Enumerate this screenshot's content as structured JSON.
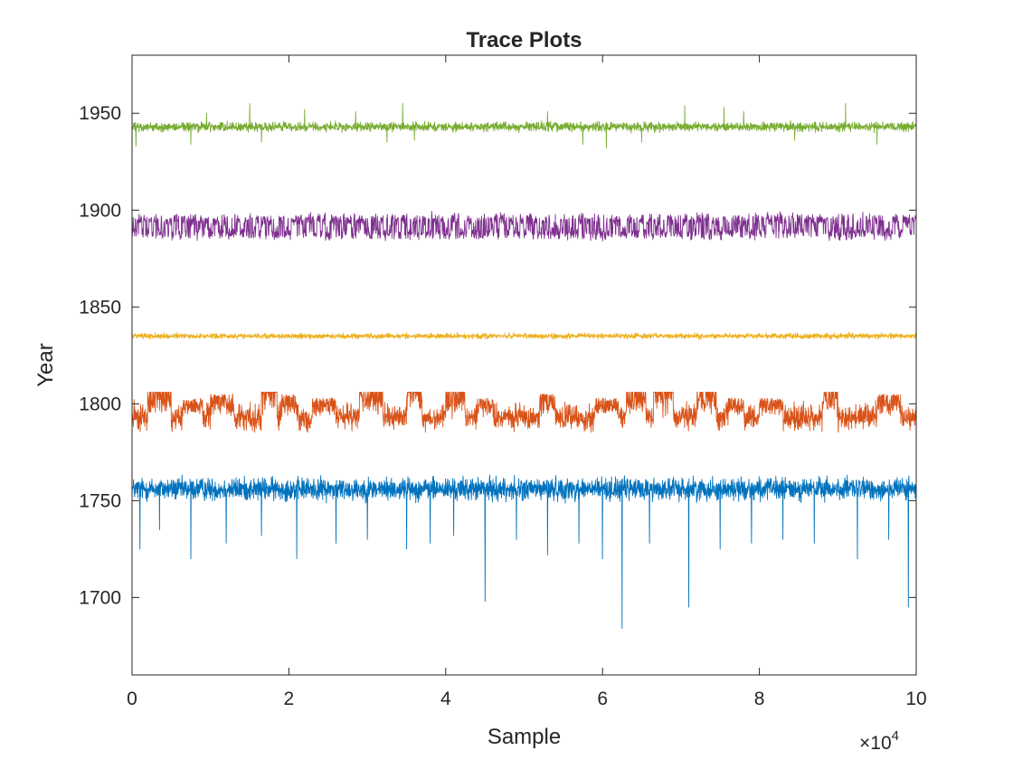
{
  "chart_data": {
    "type": "line",
    "title": "Trace Plots",
    "xlabel": "Sample",
    "ylabel": "Year",
    "xlim": [
      0,
      100000
    ],
    "ylim": [
      1660,
      1980
    ],
    "x_ticks": [
      0,
      20000,
      40000,
      60000,
      80000,
      100000
    ],
    "x_tick_labels": [
      "0",
      "2",
      "4",
      "6",
      "8",
      "10"
    ],
    "x_multiplier": {
      "base": "×10",
      "exponent": "4"
    },
    "y_ticks": [
      1700,
      1750,
      1800,
      1850,
      1900,
      1950
    ],
    "y_tick_labels": [
      "1700",
      "1750",
      "1800",
      "1850",
      "1900",
      "1950"
    ],
    "grid": false,
    "legend": "none",
    "n_samples": 100000,
    "series": [
      {
        "color": "#0072BD",
        "center": 1756,
        "band": [
          1747,
          1764
        ],
        "spikes_down": [
          [
            1000,
            1725
          ],
          [
            3500,
            1735
          ],
          [
            7500,
            1720
          ],
          [
            12000,
            1728
          ],
          [
            16500,
            1732
          ],
          [
            21000,
            1720
          ],
          [
            26000,
            1728
          ],
          [
            30000,
            1730
          ],
          [
            35000,
            1725
          ],
          [
            38000,
            1728
          ],
          [
            41000,
            1732
          ],
          [
            45000,
            1698
          ],
          [
            49000,
            1730
          ],
          [
            53000,
            1722
          ],
          [
            57000,
            1728
          ],
          [
            60000,
            1720
          ],
          [
            62500,
            1684
          ],
          [
            66000,
            1728
          ],
          [
            71000,
            1695
          ],
          [
            75000,
            1725
          ],
          [
            79000,
            1728
          ],
          [
            83000,
            1730
          ],
          [
            87000,
            1728
          ],
          [
            92500,
            1720
          ],
          [
            96500,
            1730
          ],
          [
            99000,
            1695
          ]
        ]
      },
      {
        "color": "#D95319",
        "center": 1793,
        "band": [
          1786,
          1805
        ],
        "excursions": [
          [
            2000,
            5000,
            1808
          ],
          [
            6500,
            9000,
            1803
          ],
          [
            10000,
            13000,
            1805
          ],
          [
            16500,
            18500,
            1815
          ],
          [
            19000,
            21000,
            1805
          ],
          [
            23000,
            26000,
            1803
          ],
          [
            29000,
            32000,
            1808
          ],
          [
            35000,
            37000,
            1815
          ],
          [
            40000,
            42500,
            1808
          ],
          [
            44000,
            46000,
            1803
          ],
          [
            52000,
            54000,
            1805
          ],
          [
            59000,
            62000,
            1803
          ],
          [
            63000,
            65500,
            1808
          ],
          [
            66500,
            69000,
            1815
          ],
          [
            72000,
            74500,
            1808
          ],
          [
            76000,
            78000,
            1803
          ],
          [
            80000,
            83000,
            1803
          ],
          [
            88000,
            90000,
            1808
          ],
          [
            95000,
            98000,
            1805
          ]
        ]
      },
      {
        "color": "#EDB120",
        "center": 1835,
        "band": [
          1833,
          1837
        ]
      },
      {
        "color": "#7E2F8E",
        "levels": [
          1888,
          1895
        ],
        "band": [
          1881,
          1902
        ]
      },
      {
        "color": "#77AC30",
        "center": 1943,
        "band": [
          1939,
          1946
        ],
        "spikes_up": [
          [
            9500,
            1950
          ],
          [
            15000,
            1955
          ],
          [
            22000,
            1952
          ],
          [
            28500,
            1951
          ],
          [
            34500,
            1955
          ],
          [
            53000,
            1951
          ],
          [
            70500,
            1954
          ],
          [
            75500,
            1953
          ],
          [
            78000,
            1951
          ],
          [
            91000,
            1955
          ]
        ],
        "spikes_down": [
          [
            500,
            1933
          ],
          [
            7500,
            1934
          ],
          [
            16500,
            1935
          ],
          [
            32500,
            1935
          ],
          [
            36000,
            1936
          ],
          [
            57500,
            1934
          ],
          [
            60500,
            1932
          ],
          [
            65000,
            1935
          ],
          [
            84500,
            1936
          ],
          [
            95000,
            1934
          ]
        ]
      }
    ]
  }
}
